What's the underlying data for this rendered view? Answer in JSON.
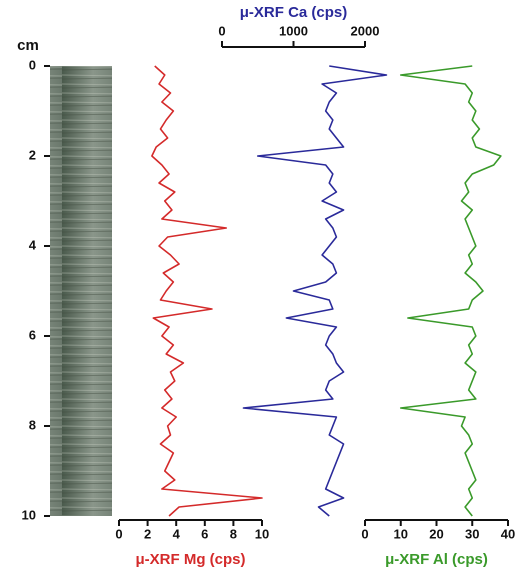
{
  "chart_data": {
    "type": "line",
    "ylabel": "cm",
    "ylim": [
      0,
      10
    ],
    "yticks": [
      0,
      2,
      4,
      6,
      8,
      10
    ],
    "y_inverted": true,
    "y": [
      0,
      0.2,
      0.4,
      0.6,
      0.8,
      1,
      1.2,
      1.4,
      1.6,
      1.8,
      2,
      2.2,
      2.4,
      2.6,
      2.8,
      3,
      3.2,
      3.4,
      3.6,
      3.8,
      4,
      4.2,
      4.4,
      4.6,
      4.8,
      5,
      5.2,
      5.4,
      5.6,
      5.8,
      6,
      6.2,
      6.4,
      6.6,
      6.8,
      7,
      7.2,
      7.4,
      7.6,
      7.8,
      8,
      8.2,
      8.4,
      8.6,
      8.8,
      9,
      9.2,
      9.4,
      9.6,
      9.8,
      10
    ],
    "series": [
      {
        "name": "μ-XRF Mg (cps)",
        "color": "#d42a2a",
        "axis_position": "bottom",
        "xlim": [
          0,
          10
        ],
        "xticks": [
          0,
          2,
          4,
          6,
          8,
          10
        ],
        "values": [
          2.5,
          3.2,
          2.8,
          3.6,
          3.0,
          3.8,
          3.3,
          2.9,
          3.4,
          2.6,
          2.3,
          3.0,
          3.5,
          2.8,
          3.9,
          3.2,
          3.7,
          3.0,
          7.5,
          3.4,
          2.8,
          3.6,
          4.2,
          3.1,
          3.8,
          3.3,
          2.9,
          6.5,
          2.4,
          3.5,
          3.0,
          3.8,
          3.3,
          4.5,
          3.6,
          3.9,
          3.2,
          3.7,
          3.0,
          4.0,
          3.4,
          3.6,
          2.9,
          3.8,
          3.5,
          3.2,
          3.9,
          3.0,
          10.0,
          4.2,
          3.5
        ]
      },
      {
        "name": "μ-XRF Ca (cps)",
        "color": "#2a2a9a",
        "axis_position": "top",
        "xlim": [
          0,
          2000
        ],
        "xticks": [
          0,
          1000,
          2000
        ],
        "values": [
          1500,
          2300,
          1400,
          1600,
          1500,
          1450,
          1550,
          1500,
          1600,
          1700,
          500,
          1450,
          1550,
          1500,
          1600,
          1400,
          1700,
          1450,
          1550,
          1600,
          1500,
          1400,
          1550,
          1600,
          1450,
          1000,
          1500,
          1550,
          900,
          1600,
          1500,
          1450,
          1550,
          1600,
          1700,
          1500,
          1450,
          1550,
          300,
          1600,
          1550,
          1500,
          1700,
          1650,
          1600,
          1550,
          1500,
          1450,
          1700,
          1350,
          1500
        ]
      },
      {
        "name": "μ-XRF Al (cps)",
        "color": "#3a9a2a",
        "axis_position": "bottom",
        "xlim": [
          0,
          40
        ],
        "xticks": [
          0,
          10,
          20,
          30,
          40
        ],
        "values": [
          30,
          10,
          28,
          30,
          29,
          31,
          30,
          32,
          30,
          31,
          38,
          36,
          30,
          28,
          29,
          27,
          30,
          28,
          29,
          30,
          31,
          29,
          30,
          28,
          31,
          33,
          30,
          29,
          12,
          30,
          31,
          29,
          30,
          28,
          31,
          30,
          29,
          31,
          10,
          28,
          27,
          29,
          30,
          28,
          29,
          30,
          31,
          29,
          30,
          28,
          30
        ]
      }
    ]
  }
}
